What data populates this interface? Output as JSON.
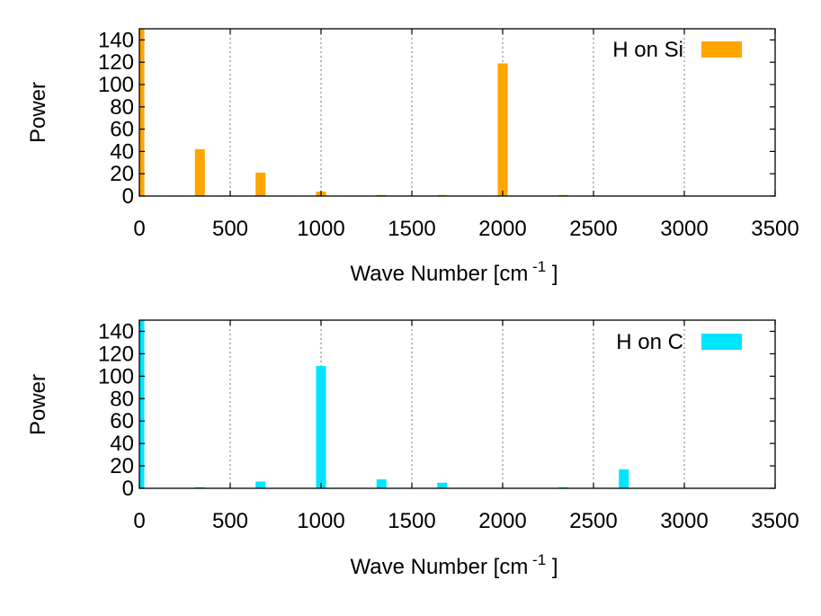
{
  "chart_data": [
    {
      "type": "bar",
      "title": "",
      "xlabel": "Wave Number  [cm",
      "xlabel_superscript": "-1",
      "xlabel_suffix": "]",
      "ylabel": "Power",
      "xlim": [
        0,
        3500
      ],
      "ylim": [
        0,
        150
      ],
      "x_ticks": [
        0,
        500,
        1000,
        1500,
        2000,
        2500,
        3000,
        3500
      ],
      "y_ticks": [
        0,
        20,
        40,
        60,
        80,
        100,
        120,
        140
      ],
      "grid": "vertical dashed",
      "legend_position": "top-right",
      "series": [
        {
          "name": "H on Si",
          "color": "#ffa500",
          "x": [
            0,
            333,
            667,
            1000,
            1333,
            1667,
            2000,
            2333
          ],
          "values": [
            150,
            42,
            21,
            4,
            1,
            1,
            119,
            1
          ]
        }
      ]
    },
    {
      "type": "bar",
      "title": "",
      "xlabel": "Wave Number  [cm",
      "xlabel_superscript": "-1",
      "xlabel_suffix": "]",
      "ylabel": "Power",
      "xlim": [
        0,
        3500
      ],
      "ylim": [
        0,
        150
      ],
      "x_ticks": [
        0,
        500,
        1000,
        1500,
        2000,
        2500,
        3000,
        3500
      ],
      "y_ticks": [
        0,
        20,
        40,
        60,
        80,
        100,
        120,
        140
      ],
      "grid": "vertical dashed",
      "legend_position": "top-right",
      "series": [
        {
          "name": "H on C",
          "color": "#00e5ff",
          "x": [
            0,
            333,
            667,
            1000,
            1333,
            1667,
            2333,
            2667
          ],
          "values": [
            150,
            1,
            6,
            109,
            8,
            5,
            1,
            17
          ]
        }
      ]
    }
  ]
}
